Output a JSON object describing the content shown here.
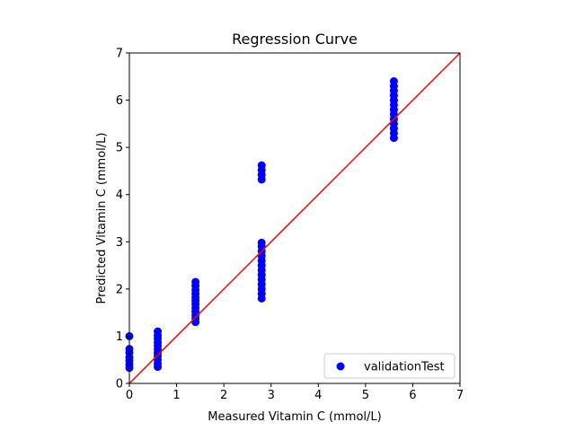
{
  "chart_data": {
    "type": "scatter",
    "title": "Regression Curve",
    "xlabel": "Measured Vitamin C (mmol/L)",
    "ylabel": "Predicted Vitamin C (mmol/L)",
    "xlim": [
      0,
      7
    ],
    "ylim": [
      0,
      7
    ],
    "xticks": [
      "0",
      "1",
      "2",
      "3",
      "4",
      "5",
      "6",
      "7"
    ],
    "yticks": [
      "0",
      "1",
      "2",
      "3",
      "4",
      "5",
      "6",
      "7"
    ],
    "grid": false,
    "legend_position": "bottom-right",
    "series": [
      {
        "name": "validationTest",
        "color": "#0000ff",
        "points": [
          {
            "x": 0,
            "y": 0.33
          },
          {
            "x": 0,
            "y": 0.4
          },
          {
            "x": 0,
            "y": 0.48
          },
          {
            "x": 0,
            "y": 0.55
          },
          {
            "x": 0,
            "y": 0.65
          },
          {
            "x": 0,
            "y": 0.73
          },
          {
            "x": 0,
            "y": 1.0
          },
          {
            "x": 0.6,
            "y": 0.35
          },
          {
            "x": 0.6,
            "y": 0.42
          },
          {
            "x": 0.6,
            "y": 0.5
          },
          {
            "x": 0.6,
            "y": 0.58
          },
          {
            "x": 0.6,
            "y": 0.65
          },
          {
            "x": 0.6,
            "y": 0.72
          },
          {
            "x": 0.6,
            "y": 0.8
          },
          {
            "x": 0.6,
            "y": 0.87
          },
          {
            "x": 0.6,
            "y": 0.95
          },
          {
            "x": 0.6,
            "y": 1.02
          },
          {
            "x": 0.6,
            "y": 1.1
          },
          {
            "x": 1.4,
            "y": 1.3
          },
          {
            "x": 1.4,
            "y": 1.38
          },
          {
            "x": 1.4,
            "y": 1.45
          },
          {
            "x": 1.4,
            "y": 1.52
          },
          {
            "x": 1.4,
            "y": 1.6
          },
          {
            "x": 1.4,
            "y": 1.68
          },
          {
            "x": 1.4,
            "y": 1.75
          },
          {
            "x": 1.4,
            "y": 1.82
          },
          {
            "x": 1.4,
            "y": 1.9
          },
          {
            "x": 1.4,
            "y": 1.98
          },
          {
            "x": 1.4,
            "y": 2.07
          },
          {
            "x": 1.4,
            "y": 2.15
          },
          {
            "x": 2.8,
            "y": 1.8
          },
          {
            "x": 2.8,
            "y": 1.9
          },
          {
            "x": 2.8,
            "y": 2.0
          },
          {
            "x": 2.8,
            "y": 2.1
          },
          {
            "x": 2.8,
            "y": 2.2
          },
          {
            "x": 2.8,
            "y": 2.3
          },
          {
            "x": 2.8,
            "y": 2.4
          },
          {
            "x": 2.8,
            "y": 2.5
          },
          {
            "x": 2.8,
            "y": 2.6
          },
          {
            "x": 2.8,
            "y": 2.7
          },
          {
            "x": 2.8,
            "y": 2.8
          },
          {
            "x": 2.8,
            "y": 2.9
          },
          {
            "x": 2.8,
            "y": 2.98
          },
          {
            "x": 2.8,
            "y": 4.32
          },
          {
            "x": 2.8,
            "y": 4.42
          },
          {
            "x": 2.8,
            "y": 4.52
          },
          {
            "x": 2.8,
            "y": 4.62
          },
          {
            "x": 5.6,
            "y": 5.2
          },
          {
            "x": 5.6,
            "y": 5.3
          },
          {
            "x": 5.6,
            "y": 5.4
          },
          {
            "x": 5.6,
            "y": 5.5
          },
          {
            "x": 5.6,
            "y": 5.6
          },
          {
            "x": 5.6,
            "y": 5.7
          },
          {
            "x": 5.6,
            "y": 5.8
          },
          {
            "x": 5.6,
            "y": 5.9
          },
          {
            "x": 5.6,
            "y": 6.0
          },
          {
            "x": 5.6,
            "y": 6.1
          },
          {
            "x": 5.6,
            "y": 6.2
          },
          {
            "x": 5.6,
            "y": 6.3
          },
          {
            "x": 5.6,
            "y": 6.4
          }
        ]
      }
    ],
    "reference_line": {
      "color": "#ff0000",
      "points": [
        {
          "x": 0,
          "y": 0
        },
        {
          "x": 7,
          "y": 7
        }
      ]
    }
  }
}
